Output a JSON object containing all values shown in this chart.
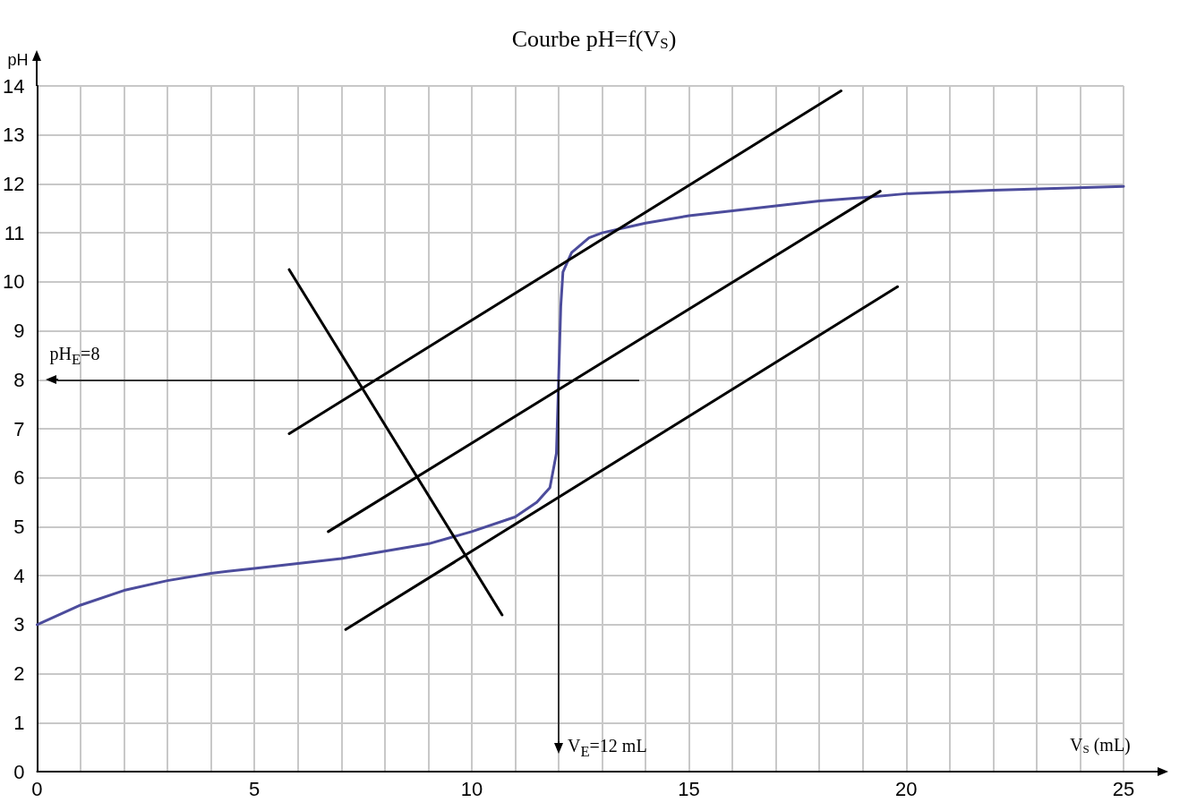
{
  "chart_data": {
    "type": "line",
    "title": "Courbe pH=f(V$_{S}$)",
    "xlabel": "V$_{S}$ (mL)",
    "ylabel": "pH",
    "xlim": [
      0,
      25
    ],
    "ylim": [
      0,
      14
    ],
    "xticks": [
      0,
      {
        "value": 1,
        "label": null
      },
      {
        "value": 2,
        "label": null
      },
      {
        "value": 3,
        "label": null
      },
      {
        "value": 4,
        "label": null
      },
      5,
      {
        "value": 6,
        "label": null
      },
      {
        "value": 7,
        "label": null
      },
      {
        "value": 8,
        "label": null
      },
      {
        "value": 9,
        "label": null
      },
      10,
      {
        "value": 11,
        "label": null
      },
      {
        "value": 12,
        "label": null
      },
      {
        "value": 13,
        "label": null
      },
      {
        "value": 14,
        "label": null
      },
      15,
      {
        "value": 16,
        "label": null
      },
      {
        "value": 17,
        "label": null
      },
      {
        "value": 18,
        "label": null
      },
      {
        "value": 19,
        "label": null
      },
      20,
      {
        "value": 21,
        "label": null
      },
      {
        "value": 22,
        "label": null
      },
      {
        "value": 23,
        "label": null
      },
      {
        "value": 24,
        "label": null
      },
      25
    ],
    "yticks": [
      0,
      1,
      2,
      3,
      4,
      5,
      6,
      7,
      8,
      9,
      10,
      11,
      12,
      13,
      14
    ],
    "grid": true,
    "marker": "none",
    "line_style": "solid",
    "series": [
      {
        "color": "#4c4c9c",
        "x": [
          0,
          1,
          2,
          3,
          4,
          5,
          6,
          7,
          8,
          9,
          10,
          11,
          11.5,
          11.8,
          11.95,
          12,
          12.05,
          12.1,
          12.3,
          12.7,
          13,
          14,
          15,
          16,
          17,
          18,
          19,
          20,
          22,
          25
        ],
        "values": [
          3,
          3.4,
          3.7,
          3.9,
          4.05,
          4.15,
          4.25,
          4.35,
          4.5,
          4.65,
          4.9,
          5.2,
          5.5,
          5.8,
          6.5,
          8,
          9.5,
          10.2,
          10.6,
          10.9,
          11,
          11.2,
          11.35,
          11.45,
          11.55,
          11.65,
          11.72,
          11.8,
          11.87,
          11.95
        ]
      },
      {
        "color": "#000000",
        "x": [
          5.8,
          18.5
        ],
        "values": [
          6.9,
          13.9
        ]
      },
      {
        "color": "#000000",
        "x": [
          6.7,
          19.4
        ],
        "values": [
          4.9,
          11.85
        ]
      },
      {
        "color": "#000000",
        "x": [
          7.1,
          19.8
        ],
        "values": [
          2.9,
          9.9
        ]
      },
      {
        "color": "#000000",
        "x": [
          5.8,
          10.7
        ],
        "values": [
          10.25,
          3.2
        ]
      }
    ],
    "ref_lines": [
      {
        "axis": "y",
        "value": 8,
        "label": "pH$_{E}$=8",
        "color": "#000000"
      },
      {
        "axis": "x",
        "value": 12,
        "label": "V$_{E}$=12 mL",
        "color": "#000000"
      }
    ]
  }
}
